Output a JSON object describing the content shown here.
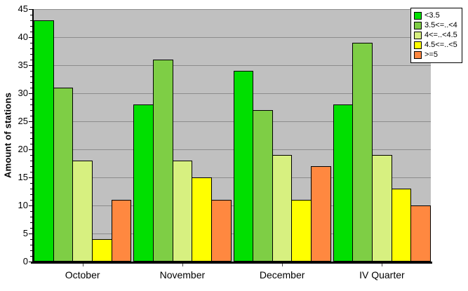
{
  "chart_data": {
    "type": "bar",
    "title": "",
    "xlabel": "",
    "ylabel": "Amount of stations",
    "categories": [
      "October",
      "November",
      "December",
      "IV Quarter"
    ],
    "series": [
      {
        "name": "<3.5",
        "color": "#00DF00",
        "values": [
          43,
          28,
          34,
          28
        ]
      },
      {
        "name": "3.5<=..<4",
        "color": "#7ECE45",
        "values": [
          31,
          36,
          27,
          39
        ]
      },
      {
        "name": "4<=..<4.5",
        "color": "#D7F080",
        "values": [
          18,
          18,
          19,
          19
        ]
      },
      {
        "name": "4.5<=..<5",
        "color": "#FFFF00",
        "values": [
          4,
          15,
          11,
          13
        ]
      },
      {
        "name": ">=5",
        "color": "#FF8840",
        "values": [
          11,
          11,
          17,
          10
        ]
      }
    ],
    "ylim": [
      0,
      45
    ],
    "ytick_step": 5,
    "ytick_minor_step": 1,
    "grid": true,
    "legend_position": "top-right",
    "plot_bg_color": "#C0C0C0",
    "gridline_color": "#8C8C8C",
    "axis_color": "#000000",
    "bar_border_color": "#000000"
  }
}
